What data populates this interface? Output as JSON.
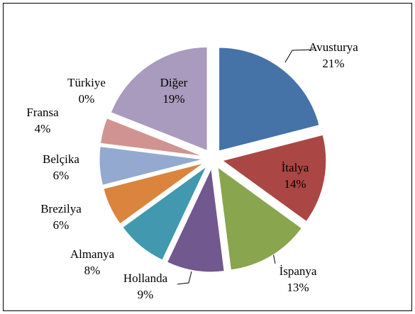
{
  "chart_data": {
    "type": "pie",
    "categories": [
      "Avusturya",
      "İtalya",
      "İspanya",
      "Hollanda",
      "Almanya",
      "Brezilya",
      "Belçika",
      "Fransa",
      "Türkiye",
      "Diğer"
    ],
    "values": [
      21,
      14,
      13,
      9,
      8,
      6,
      6,
      4,
      0,
      19
    ],
    "value_labels": [
      "21%",
      "14%",
      "13%",
      "9%",
      "8%",
      "6%",
      "6%",
      "4%",
      "0%",
      "19%"
    ],
    "colors": [
      "#4572a7",
      "#aa4643",
      "#89a54e",
      "#71588f",
      "#4198af",
      "#db843d",
      "#93a9cf",
      "#d19392",
      "#b9cd96",
      "#a99bbd"
    ]
  }
}
